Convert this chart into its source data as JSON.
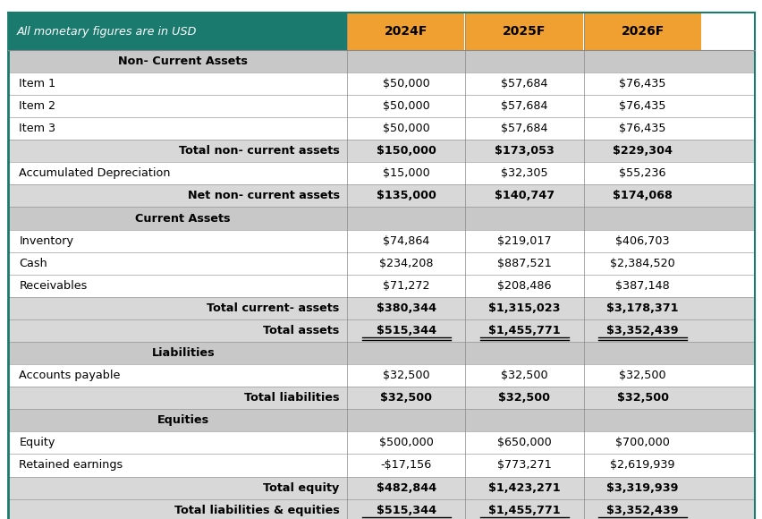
{
  "header_label": "All monetary figures are in USD",
  "columns": [
    "2024F",
    "2025F",
    "2026F"
  ],
  "rows": [
    {
      "label": "Non- Current Assets",
      "type": "section_header",
      "values": [
        "",
        "",
        ""
      ]
    },
    {
      "label": "Item 1",
      "type": "data",
      "values": [
        "$50,000",
        "$57,684",
        "$76,435"
      ]
    },
    {
      "label": "Item 2",
      "type": "data",
      "values": [
        "$50,000",
        "$57,684",
        "$76,435"
      ]
    },
    {
      "label": "Item 3",
      "type": "data",
      "values": [
        "$50,000",
        "$57,684",
        "$76,435"
      ]
    },
    {
      "label": "Total non- current assets",
      "type": "subtotal",
      "values": [
        "$150,000",
        "$173,053",
        "$229,304"
      ]
    },
    {
      "label": "Accumulated Depreciation",
      "type": "data",
      "values": [
        "$15,000",
        "$32,305",
        "$55,236"
      ]
    },
    {
      "label": "Net non- current assets",
      "type": "subtotal",
      "values": [
        "$135,000",
        "$140,747",
        "$174,068"
      ]
    },
    {
      "label": "Current Assets",
      "type": "section_header",
      "values": [
        "",
        "",
        ""
      ]
    },
    {
      "label": "Inventory",
      "type": "data",
      "values": [
        "$74,864",
        "$219,017",
        "$406,703"
      ]
    },
    {
      "label": "Cash",
      "type": "data",
      "values": [
        "$234,208",
        "$887,521",
        "$2,384,520"
      ]
    },
    {
      "label": "Receivables",
      "type": "data",
      "values": [
        "$71,272",
        "$208,486",
        "$387,148"
      ]
    },
    {
      "label": "Total current- assets",
      "type": "subtotal",
      "values": [
        "$380,344",
        "$1,315,023",
        "$3,178,371"
      ]
    },
    {
      "label": "Total assets",
      "type": "total",
      "values": [
        "$515,344",
        "$1,455,771",
        "$3,352,439"
      ]
    },
    {
      "label": "Liabilities",
      "type": "section_header",
      "values": [
        "",
        "",
        ""
      ]
    },
    {
      "label": "Accounts payable",
      "type": "data",
      "values": [
        "$32,500",
        "$32,500",
        "$32,500"
      ]
    },
    {
      "label": "Total liabilities",
      "type": "subtotal",
      "values": [
        "$32,500",
        "$32,500",
        "$32,500"
      ]
    },
    {
      "label": "Equities",
      "type": "section_header",
      "values": [
        "",
        "",
        ""
      ]
    },
    {
      "label": "Equity",
      "type": "data",
      "values": [
        "$500,000",
        "$650,000",
        "$700,000"
      ]
    },
    {
      "label": "Retained earnings",
      "type": "data",
      "values": [
        "-$17,156",
        "$773,271",
        "$2,619,939"
      ]
    },
    {
      "label": "Total equity",
      "type": "subtotal",
      "values": [
        "$482,844",
        "$1,423,271",
        "$3,319,939"
      ]
    },
    {
      "label": "Total liabilities & equities",
      "type": "total",
      "values": [
        "$515,344",
        "$1,455,771",
        "$3,352,439"
      ]
    }
  ],
  "header_bg": "#1a7a6e",
  "col_header_bg": "#f0a030",
  "section_header_bg": "#c8c8c8",
  "subtotal_bg": "#d8d8d8",
  "data_bg": "#ffffff",
  "border_color": "#888888",
  "teal_color": "#1a7a6e",
  "header_text_color": "#ffffff",
  "col_header_text_color": "#000000",
  "section_header_text_color": "#000000",
  "data_text_color": "#000000",
  "fig_width": 8.53,
  "fig_height": 5.8
}
